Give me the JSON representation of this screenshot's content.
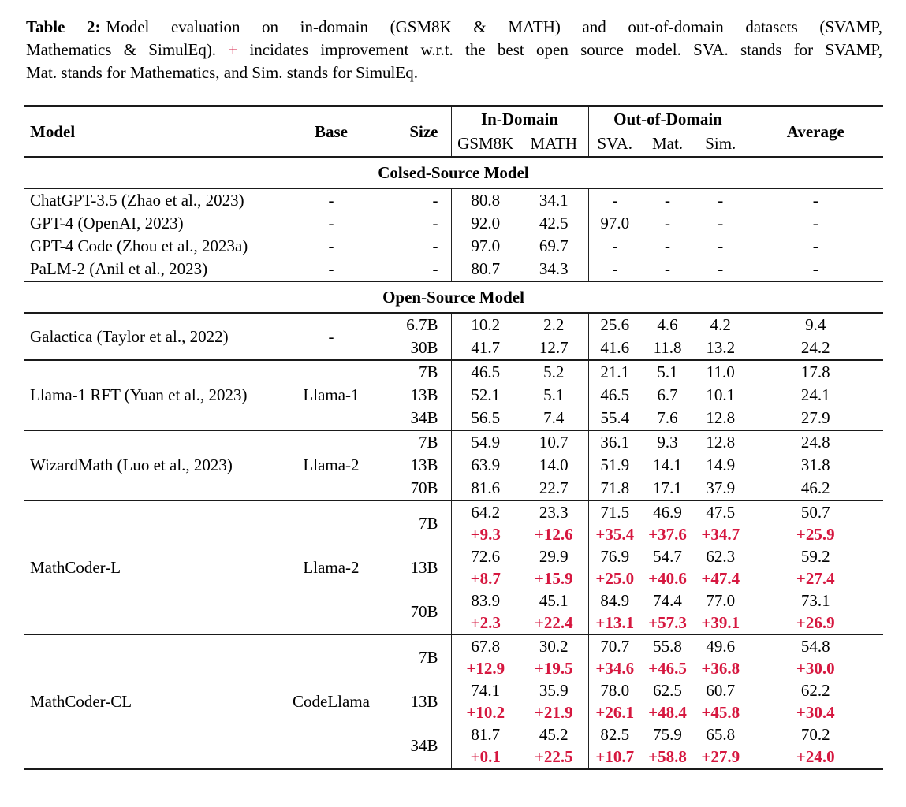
{
  "caption": {
    "label": "Table 2:",
    "line1_rest": "Model evaluation on in-domain (GSM8K & MATH) and out-of-domain datasets (SVAMP,",
    "line2_pre": "Mathematics & SimulEq).",
    "line2_plus": "+",
    "line2_post": "incidates improvement w.r.t. the best open source model. SVA. stands for SVAMP,",
    "line3": "Mat. stands for Mathematics, and Sim. stands for SimulEq."
  },
  "colors": {
    "delta_red": "#d6173f",
    "rule": "#1a1a1a"
  },
  "table": {
    "header": {
      "model": "Model",
      "base": "Base",
      "size": "Size",
      "in_domain": "In-Domain",
      "out_of_domain": "Out-of-Domain",
      "average": "Average",
      "gsm8k": "GSM8K",
      "math": "MATH",
      "sva": "SVA.",
      "mat": "Mat.",
      "sim": "Sim."
    },
    "sections": [
      {
        "title": "Colsed-Source Model",
        "separators": false,
        "groups": [
          {
            "model": "ChatGPT-3.5 (Zhao et al., 2023)",
            "base": "-",
            "rows": [
              {
                "size": "-",
                "values": [
                  "80.8",
                  "34.1",
                  "-",
                  "-",
                  "-",
                  "-"
                ]
              }
            ]
          },
          {
            "model": "GPT-4 (OpenAI, 2023)",
            "base": "-",
            "rows": [
              {
                "size": "-",
                "values": [
                  "92.0",
                  "42.5",
                  "97.0",
                  "-",
                  "-",
                  "-"
                ]
              }
            ]
          },
          {
            "model": "GPT-4 Code (Zhou et al., 2023a)",
            "base": "-",
            "rows": [
              {
                "size": "-",
                "values": [
                  "97.0",
                  "69.7",
                  "-",
                  "-",
                  "-",
                  "-"
                ]
              }
            ]
          },
          {
            "model": "PaLM-2 (Anil et al., 2023)",
            "base": "-",
            "rows": [
              {
                "size": "-",
                "values": [
                  "80.7",
                  "34.3",
                  "-",
                  "-",
                  "-",
                  "-"
                ]
              }
            ]
          }
        ]
      },
      {
        "title": "Open-Source Model",
        "separators": true,
        "groups": [
          {
            "model": "Galactica (Taylor et al., 2022)",
            "base": "-",
            "rows": [
              {
                "size": "6.7B",
                "values": [
                  "10.2",
                  "2.2",
                  "25.6",
                  "4.6",
                  "4.2",
                  "9.4"
                ]
              },
              {
                "size": "30B",
                "values": [
                  "41.7",
                  "12.7",
                  "41.6",
                  "11.8",
                  "13.2",
                  "24.2"
                ]
              }
            ]
          },
          {
            "model": "Llama-1 RFT (Yuan et al., 2023)",
            "base": "Llama-1",
            "rows": [
              {
                "size": "7B",
                "values": [
                  "46.5",
                  "5.2",
                  "21.1",
                  "5.1",
                  "11.0",
                  "17.8"
                ]
              },
              {
                "size": "13B",
                "values": [
                  "52.1",
                  "5.1",
                  "46.5",
                  "6.7",
                  "10.1",
                  "24.1"
                ]
              },
              {
                "size": "34B",
                "values": [
                  "56.5",
                  "7.4",
                  "55.4",
                  "7.6",
                  "12.8",
                  "27.9"
                ]
              }
            ]
          },
          {
            "model": "WizardMath (Luo et al., 2023)",
            "base": "Llama-2",
            "rows": [
              {
                "size": "7B",
                "values": [
                  "54.9",
                  "10.7",
                  "36.1",
                  "9.3",
                  "12.8",
                  "24.8"
                ]
              },
              {
                "size": "13B",
                "values": [
                  "63.9",
                  "14.0",
                  "51.9",
                  "14.1",
                  "14.9",
                  "31.8"
                ]
              },
              {
                "size": "70B",
                "values": [
                  "81.6",
                  "22.7",
                  "71.8",
                  "17.1",
                  "37.9",
                  "46.2"
                ]
              }
            ]
          },
          {
            "model": "MathCoder-L",
            "base": "Llama-2",
            "rows": [
              {
                "size": "7B",
                "values": [
                  "64.2",
                  "23.3",
                  "71.5",
                  "46.9",
                  "47.5",
                  "50.7"
                ],
                "deltas": [
                  "+9.3",
                  "+12.6",
                  "+35.4",
                  "+37.6",
                  "+34.7",
                  "+25.9"
                ]
              },
              {
                "size": "13B",
                "values": [
                  "72.6",
                  "29.9",
                  "76.9",
                  "54.7",
                  "62.3",
                  "59.2"
                ],
                "deltas": [
                  "+8.7",
                  "+15.9",
                  "+25.0",
                  "+40.6",
                  "+47.4",
                  "+27.4"
                ]
              },
              {
                "size": "70B",
                "values": [
                  "83.9",
                  "45.1",
                  "84.9",
                  "74.4",
                  "77.0",
                  "73.1"
                ],
                "deltas": [
                  "+2.3",
                  "+22.4",
                  "+13.1",
                  "+57.3",
                  "+39.1",
                  "+26.9"
                ]
              }
            ]
          },
          {
            "model": "MathCoder-CL",
            "base": "CodeLlama",
            "rows": [
              {
                "size": "7B",
                "values": [
                  "67.8",
                  "30.2",
                  "70.7",
                  "55.8",
                  "49.6",
                  "54.8"
                ],
                "deltas": [
                  "+12.9",
                  "+19.5",
                  "+34.6",
                  "+46.5",
                  "+36.8",
                  "+30.0"
                ]
              },
              {
                "size": "13B",
                "values": [
                  "74.1",
                  "35.9",
                  "78.0",
                  "62.5",
                  "60.7",
                  "62.2"
                ],
                "deltas": [
                  "+10.2",
                  "+21.9",
                  "+26.1",
                  "+48.4",
                  "+45.8",
                  "+30.4"
                ]
              },
              {
                "size": "34B",
                "values": [
                  "81.7",
                  "45.2",
                  "82.5",
                  "75.9",
                  "65.8",
                  "70.2"
                ],
                "deltas": [
                  "+0.1",
                  "+22.5",
                  "+10.7",
                  "+58.8",
                  "+27.9",
                  "+24.0"
                ]
              }
            ]
          }
        ]
      }
    ]
  }
}
